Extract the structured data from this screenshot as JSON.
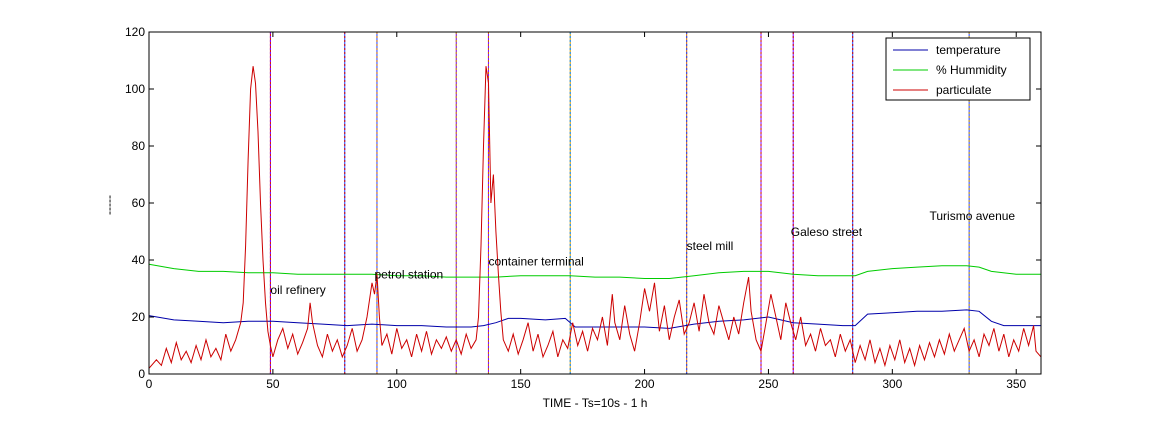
{
  "chart_data": {
    "type": "line",
    "title": "",
    "xlabel": "TIME - Ts=10s -  1 h",
    "ylabel": "-----",
    "xlim": [
      0,
      360
    ],
    "ylim": [
      0,
      120
    ],
    "xticks": [
      0,
      50,
      100,
      150,
      200,
      250,
      300,
      350
    ],
    "yticks": [
      0,
      20,
      40,
      60,
      80,
      100,
      120
    ],
    "grid": false,
    "legend_position": "top-right",
    "series": [
      {
        "name": "temperature",
        "color": "#0000aa",
        "points": [
          [
            0,
            20.5
          ],
          [
            10,
            19
          ],
          [
            20,
            18.5
          ],
          [
            30,
            18
          ],
          [
            40,
            18.5
          ],
          [
            50,
            18.5
          ],
          [
            60,
            18
          ],
          [
            70,
            17.5
          ],
          [
            80,
            17
          ],
          [
            90,
            17.5
          ],
          [
            100,
            17
          ],
          [
            110,
            17
          ],
          [
            120,
            16.5
          ],
          [
            130,
            16.5
          ],
          [
            135,
            17
          ],
          [
            140,
            18
          ],
          [
            145,
            19.5
          ],
          [
            150,
            19.5
          ],
          [
            160,
            19
          ],
          [
            168,
            19.5
          ],
          [
            172,
            16.5
          ],
          [
            180,
            16.5
          ],
          [
            190,
            16.5
          ],
          [
            200,
            16.5
          ],
          [
            210,
            16
          ],
          [
            220,
            17.5
          ],
          [
            230,
            18.5
          ],
          [
            240,
            19
          ],
          [
            250,
            20
          ],
          [
            255,
            19
          ],
          [
            260,
            18
          ],
          [
            270,
            17.5
          ],
          [
            280,
            17
          ],
          [
            285,
            17
          ],
          [
            290,
            21
          ],
          [
            300,
            21.5
          ],
          [
            310,
            22
          ],
          [
            320,
            22
          ],
          [
            330,
            22.5
          ],
          [
            335,
            22
          ],
          [
            340,
            18.5
          ],
          [
            345,
            17
          ],
          [
            350,
            17
          ],
          [
            360,
            17
          ]
        ]
      },
      {
        "name": "% Hummidity",
        "color": "#00cc00",
        "points": [
          [
            0,
            38.5
          ],
          [
            10,
            37
          ],
          [
            20,
            36
          ],
          [
            30,
            36
          ],
          [
            40,
            35.5
          ],
          [
            50,
            35.5
          ],
          [
            60,
            35
          ],
          [
            80,
            35
          ],
          [
            90,
            35
          ],
          [
            100,
            34.5
          ],
          [
            110,
            34.5
          ],
          [
            120,
            34
          ],
          [
            130,
            34
          ],
          [
            140,
            34
          ],
          [
            150,
            34.5
          ],
          [
            160,
            34.5
          ],
          [
            170,
            34.5
          ],
          [
            180,
            34
          ],
          [
            190,
            34
          ],
          [
            200,
            33.5
          ],
          [
            210,
            33.5
          ],
          [
            220,
            34.5
          ],
          [
            230,
            35.5
          ],
          [
            240,
            36
          ],
          [
            250,
            36
          ],
          [
            260,
            35
          ],
          [
            270,
            34.5
          ],
          [
            280,
            34.5
          ],
          [
            285,
            34.5
          ],
          [
            290,
            36
          ],
          [
            300,
            37
          ],
          [
            310,
            37.5
          ],
          [
            320,
            38
          ],
          [
            330,
            38
          ],
          [
            335,
            37.5
          ],
          [
            340,
            36
          ],
          [
            350,
            35
          ],
          [
            360,
            35
          ]
        ]
      },
      {
        "name": "particulate",
        "color": "#cc0000",
        "points": [
          [
            0,
            2
          ],
          [
            3,
            5
          ],
          [
            5,
            3
          ],
          [
            7,
            9
          ],
          [
            9,
            4
          ],
          [
            11,
            11
          ],
          [
            13,
            5
          ],
          [
            15,
            8
          ],
          [
            17,
            4
          ],
          [
            19,
            10
          ],
          [
            21,
            5
          ],
          [
            23,
            12
          ],
          [
            25,
            6
          ],
          [
            27,
            9
          ],
          [
            29,
            5
          ],
          [
            31,
            14
          ],
          [
            33,
            8
          ],
          [
            35,
            12
          ],
          [
            37,
            18
          ],
          [
            38,
            25
          ],
          [
            39,
            45
          ],
          [
            40,
            75
          ],
          [
            41,
            100
          ],
          [
            42,
            108
          ],
          [
            43,
            102
          ],
          [
            44,
            85
          ],
          [
            45,
            60
          ],
          [
            46,
            40
          ],
          [
            47,
            25
          ],
          [
            48,
            15
          ],
          [
            49,
            10
          ],
          [
            50,
            6
          ],
          [
            52,
            12
          ],
          [
            54,
            16
          ],
          [
            56,
            9
          ],
          [
            58,
            14
          ],
          [
            60,
            7
          ],
          [
            62,
            11
          ],
          [
            64,
            16
          ],
          [
            65,
            25
          ],
          [
            66,
            18
          ],
          [
            68,
            10
          ],
          [
            70,
            6
          ],
          [
            72,
            14
          ],
          [
            74,
            8
          ],
          [
            76,
            12
          ],
          [
            78,
            6
          ],
          [
            80,
            10
          ],
          [
            82,
            16
          ],
          [
            84,
            8
          ],
          [
            86,
            12
          ],
          [
            88,
            20
          ],
          [
            89,
            26
          ],
          [
            90,
            32
          ],
          [
            91,
            28
          ],
          [
            92,
            35
          ],
          [
            93,
            20
          ],
          [
            94,
            10
          ],
          [
            96,
            14
          ],
          [
            98,
            7
          ],
          [
            100,
            16
          ],
          [
            102,
            9
          ],
          [
            104,
            12
          ],
          [
            106,
            6
          ],
          [
            108,
            14
          ],
          [
            110,
            8
          ],
          [
            112,
            15
          ],
          [
            114,
            7
          ],
          [
            116,
            12
          ],
          [
            118,
            9
          ],
          [
            120,
            13
          ],
          [
            122,
            8
          ],
          [
            124,
            12
          ],
          [
            126,
            7
          ],
          [
            128,
            14
          ],
          [
            130,
            9
          ],
          [
            132,
            12
          ],
          [
            133,
            20
          ],
          [
            134,
            45
          ],
          [
            135,
            80
          ],
          [
            136,
            108
          ],
          [
            137,
            102
          ],
          [
            138,
            60
          ],
          [
            139,
            70
          ],
          [
            140,
            50
          ],
          [
            141,
            35
          ],
          [
            142,
            22
          ],
          [
            143,
            12
          ],
          [
            145,
            8
          ],
          [
            147,
            14
          ],
          [
            149,
            7
          ],
          [
            151,
            12
          ],
          [
            153,
            18
          ],
          [
            155,
            8
          ],
          [
            157,
            14
          ],
          [
            159,
            6
          ],
          [
            161,
            10
          ],
          [
            163,
            15
          ],
          [
            165,
            6
          ],
          [
            167,
            12
          ],
          [
            169,
            9
          ],
          [
            171,
            18
          ],
          [
            173,
            10
          ],
          [
            175,
            15
          ],
          [
            177,
            8
          ],
          [
            179,
            16
          ],
          [
            181,
            12
          ],
          [
            183,
            20
          ],
          [
            185,
            10
          ],
          [
            187,
            28
          ],
          [
            188,
            18
          ],
          [
            190,
            12
          ],
          [
            192,
            24
          ],
          [
            194,
            14
          ],
          [
            196,
            8
          ],
          [
            198,
            18
          ],
          [
            200,
            30
          ],
          [
            202,
            22
          ],
          [
            204,
            32
          ],
          [
            206,
            15
          ],
          [
            208,
            24
          ],
          [
            210,
            12
          ],
          [
            212,
            20
          ],
          [
            214,
            26
          ],
          [
            216,
            14
          ],
          [
            218,
            18
          ],
          [
            220,
            25
          ],
          [
            222,
            15
          ],
          [
            224,
            28
          ],
          [
            226,
            18
          ],
          [
            228,
            14
          ],
          [
            230,
            24
          ],
          [
            232,
            18
          ],
          [
            234,
            12
          ],
          [
            236,
            20
          ],
          [
            238,
            14
          ],
          [
            240,
            25
          ],
          [
            242,
            34
          ],
          [
            243,
            22
          ],
          [
            245,
            12
          ],
          [
            247,
            8
          ],
          [
            249,
            18
          ],
          [
            251,
            28
          ],
          [
            253,
            20
          ],
          [
            255,
            12
          ],
          [
            257,
            25
          ],
          [
            259,
            18
          ],
          [
            261,
            12
          ],
          [
            263,
            20
          ],
          [
            265,
            10
          ],
          [
            267,
            14
          ],
          [
            269,
            8
          ],
          [
            271,
            16
          ],
          [
            273,
            10
          ],
          [
            275,
            12
          ],
          [
            277,
            6
          ],
          [
            279,
            14
          ],
          [
            281,
            8
          ],
          [
            283,
            12
          ],
          [
            285,
            4
          ],
          [
            287,
            10
          ],
          [
            289,
            5
          ],
          [
            291,
            12
          ],
          [
            293,
            4
          ],
          [
            295,
            9
          ],
          [
            297,
            3
          ],
          [
            299,
            10
          ],
          [
            301,
            5
          ],
          [
            303,
            12
          ],
          [
            305,
            4
          ],
          [
            307,
            9
          ],
          [
            309,
            3
          ],
          [
            311,
            10
          ],
          [
            313,
            5
          ],
          [
            315,
            11
          ],
          [
            317,
            6
          ],
          [
            319,
            12
          ],
          [
            321,
            7
          ],
          [
            323,
            14
          ],
          [
            325,
            8
          ],
          [
            327,
            12
          ],
          [
            329,
            16
          ],
          [
            331,
            8
          ],
          [
            333,
            12
          ],
          [
            335,
            6
          ],
          [
            337,
            14
          ],
          [
            339,
            10
          ],
          [
            341,
            16
          ],
          [
            343,
            8
          ],
          [
            345,
            14
          ],
          [
            347,
            6
          ],
          [
            349,
            12
          ],
          [
            351,
            8
          ],
          [
            353,
            16
          ],
          [
            355,
            10
          ],
          [
            357,
            17
          ],
          [
            358,
            8
          ],
          [
            360,
            6
          ]
        ]
      }
    ],
    "markers": [
      {
        "x": 49,
        "color": "#7f00ff",
        "bands": [
          "#cc0000",
          "#7f00ff"
        ]
      },
      {
        "x": 79,
        "color": "#cc0000",
        "bands": [
          "#2040ff",
          "#cc0000"
        ]
      },
      {
        "x": 92,
        "color": "#2040ff",
        "bands": [
          "#2040ff",
          "#cc6600"
        ]
      },
      {
        "x": 124,
        "color": "#cc0000",
        "bands": [
          "#8000cc",
          "#cc9900"
        ]
      },
      {
        "x": 137,
        "color": "#7f00ff",
        "bands": [
          "#7f00ff",
          "#cc6600"
        ]
      },
      {
        "x": 170,
        "color": "#0080ff",
        "bands": [
          "#cc9900",
          "#0080ff"
        ]
      },
      {
        "x": 217,
        "color": "#cc6600",
        "bands": [
          "#cc6600",
          "#2040ff"
        ]
      },
      {
        "x": 247,
        "color": "#7f00ff",
        "bands": [
          "#7f00ff",
          "#cc0000"
        ]
      },
      {
        "x": 260,
        "color": "#7f00ff",
        "bands": [
          "#7f00ff",
          "#cc0000"
        ]
      },
      {
        "x": 284,
        "color": "#cc0000",
        "bands": [
          "#2040ff",
          "#cc0000"
        ]
      },
      {
        "x": 331,
        "color": "#2040ff",
        "bands": [
          "#2040ff",
          "#cc9900"
        ]
      }
    ],
    "annotations": [
      {
        "text": "oil refinery",
        "x": 49,
        "y": 28
      },
      {
        "text": "petrol station",
        "x": 91,
        "y": 33.5
      },
      {
        "text": "container terminal",
        "x": 137,
        "y": 38
      },
      {
        "text": "steel mill",
        "x": 217,
        "y": 43.5
      },
      {
        "text": "Galeso street",
        "x": 259,
        "y": 48.5
      },
      {
        "text": "Turismo avenue",
        "x": 315,
        "y": 54
      }
    ]
  }
}
